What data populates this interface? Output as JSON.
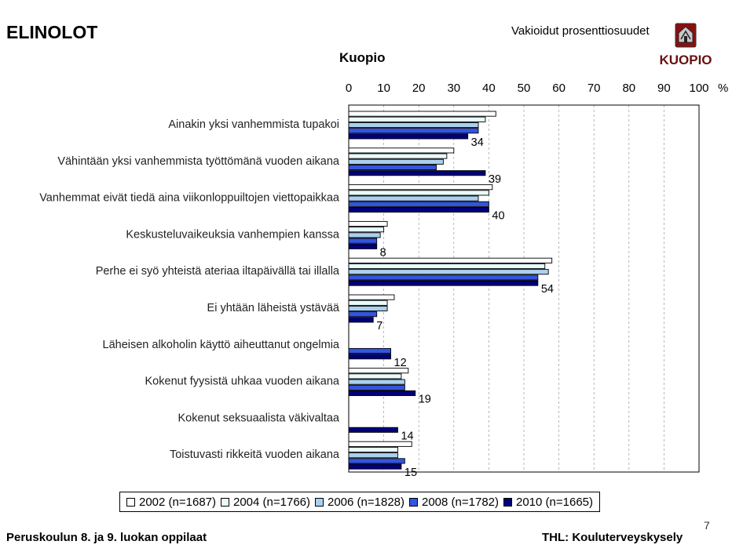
{
  "header": {
    "title": "ELINOLOT",
    "subtitle": "Vakioidut prosenttiosuudet",
    "region": "Kuopio",
    "logo_text": "KUOPIO"
  },
  "footer": {
    "left": "Peruskoulun 8. ja 9. luokan oppilaat",
    "right": "THL: Kouluterveyskysely",
    "page_number": "7"
  },
  "chart_data": {
    "type": "bar",
    "orientation": "horizontal",
    "title": "",
    "xlabel": "",
    "ylabel": "",
    "x_unit": "%",
    "xlim": [
      0,
      100
    ],
    "x_ticks": [
      "0",
      "10",
      "20",
      "30",
      "40",
      "50",
      "60",
      "70",
      "80",
      "90",
      "100"
    ],
    "x_tick_values": [
      0,
      10,
      20,
      30,
      40,
      50,
      60,
      70,
      80,
      90,
      100
    ],
    "grid": "vertical dashed",
    "legend_position": "bottom",
    "categories": [
      "Ainakin yksi vanhemmista tupakoi",
      "Vähintään yksi vanhemmista työttömänä vuoden aikana",
      "Vanhemmat eivät tiedä aina viikonloppuiltojen viettopaikkaa",
      "Keskusteluvaikeuksia vanhempien kanssa",
      "Perhe ei syö yhteistä ateriaa iltapäivällä tai illalla",
      "Ei yhtään läheistä ystävää",
      "Läheisen alkoholin käyttö aiheuttanut ongelmia",
      "Kokenut fyysistä uhkaa vuoden aikana",
      "Kokenut seksuaalista väkivaltaa",
      "Toistuvasti rikkeitä vuoden aikana"
    ],
    "series": [
      {
        "name": "2002 (n=1687)",
        "color": "#ffffff",
        "values": [
          42,
          30,
          41,
          11,
          58,
          13,
          null,
          17,
          null,
          18
        ]
      },
      {
        "name": "2004 (n=1766)",
        "color": "#e8fafa",
        "values": [
          39,
          28,
          40,
          10,
          56,
          11,
          null,
          15,
          null,
          14
        ]
      },
      {
        "name": "2006 (n=1828)",
        "color": "#aad0ef",
        "values": [
          37,
          27,
          37,
          9,
          57,
          11,
          null,
          16,
          null,
          14
        ]
      },
      {
        "name": "2008 (n=1782)",
        "color": "#3355e0",
        "values": [
          37,
          25,
          40,
          8,
          54,
          8,
          12,
          16,
          null,
          16
        ]
      },
      {
        "name": "2010 (n=1665)",
        "color": "#00007a",
        "values": [
          34,
          39,
          40,
          8,
          54,
          7,
          12,
          19,
          14,
          15
        ]
      }
    ],
    "data_labels": [
      "34",
      "39",
      "40",
      "8",
      "54",
      "7",
      "12",
      "19",
      "14",
      "15"
    ]
  }
}
